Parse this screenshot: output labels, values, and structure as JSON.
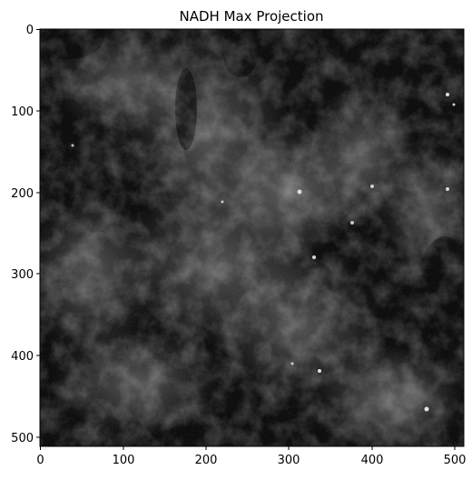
{
  "title": "NADH Max Projection",
  "x_ticks": [
    "0",
    "100",
    "200",
    "300",
    "400",
    "500"
  ],
  "y_ticks": [
    "0",
    "100",
    "200",
    "300",
    "400",
    "500"
  ],
  "image_extent": [
    0,
    511
  ],
  "colors": {
    "background": "#ffffff",
    "axis": "#000000",
    "image_dark": "#060606"
  }
}
